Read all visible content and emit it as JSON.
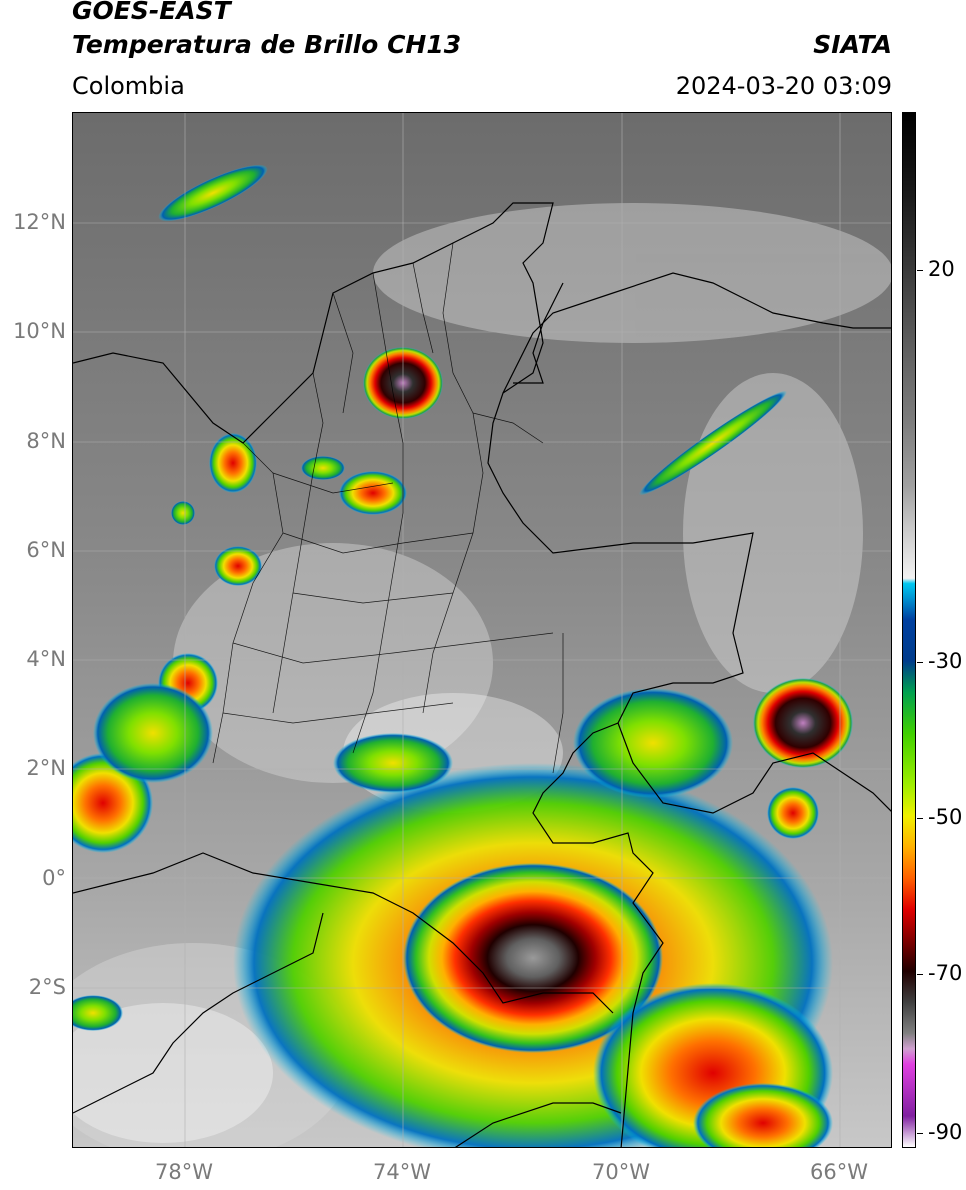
{
  "title": {
    "line1": "GOES-EAST",
    "line2": "Temperatura de Brillo CH13",
    "subtitle": "Colombia",
    "source": "SIATA",
    "datetime": "2024-03-20 03:09"
  },
  "lat_ticks": [
    "12°N",
    "10°N",
    "8°N",
    "6°N",
    "4°N",
    "2°N",
    "0°",
    "2°S"
  ],
  "lon_ticks": [
    "78°W",
    "74°W",
    "70°W",
    "66°W"
  ],
  "colorbar": {
    "ticks": [
      "20",
      "-30",
      "-50",
      "-70",
      "-90"
    ],
    "colors": [
      "#000000",
      "#1a1a1a",
      "#3a3a3a",
      "#5c5c5c",
      "#7e7e7e",
      "#a0a0a0",
      "#c8c8c8",
      "#f2f2f2",
      "#00c8f0",
      "#0090d0",
      "#0040a0",
      "#003c8c",
      "#00a050",
      "#40d000",
      "#a0ee00",
      "#f0f000",
      "#ffb000",
      "#ff6000",
      "#e00000",
      "#800000",
      "#200000",
      "#404040",
      "#808080",
      "#d0a0d0",
      "#e040e0",
      "#8020a0",
      "#ffffff"
    ]
  }
}
